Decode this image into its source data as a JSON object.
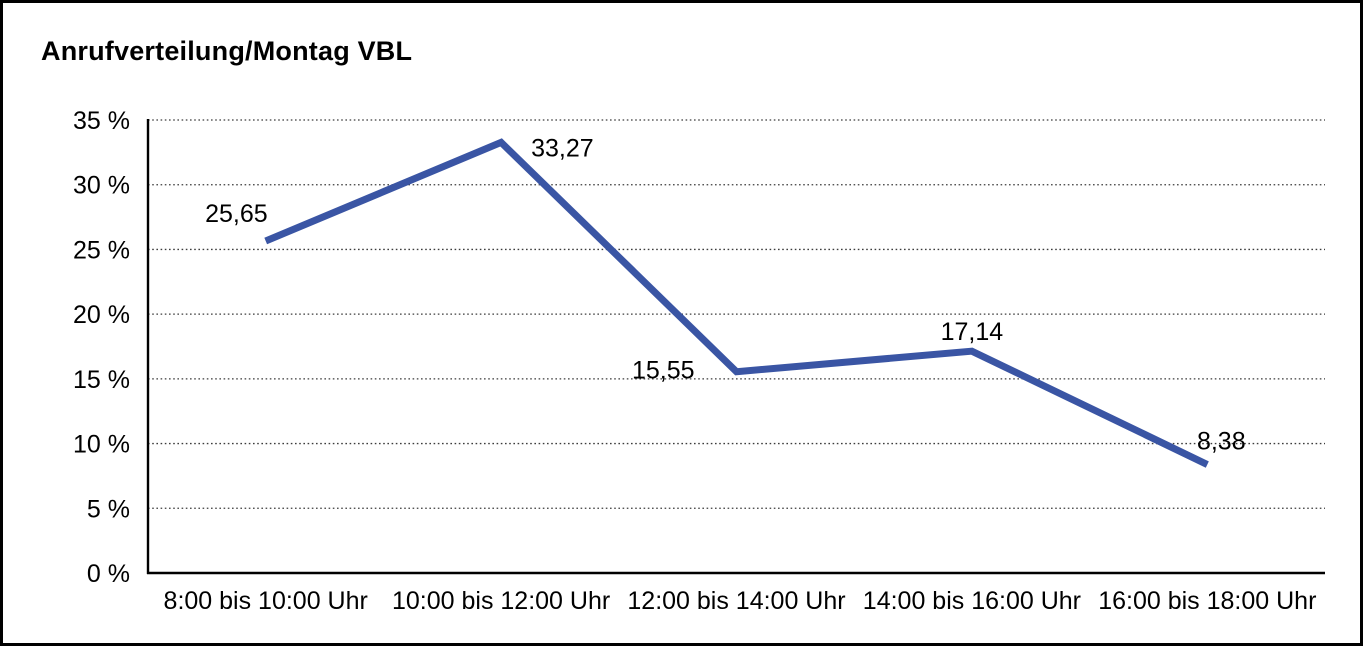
{
  "chart_data": {
    "type": "line",
    "title": "Anrufverteilung/Montag VBL",
    "categories": [
      "8:00 bis 10:00 Uhr",
      "10:00 bis 12:00 Uhr",
      "12:00 bis 14:00 Uhr",
      "14:00 bis 16:00 Uhr",
      "16:00 bis 18:00 Uhr"
    ],
    "values": [
      25.65,
      33.27,
      15.55,
      17.14,
      8.38
    ],
    "value_labels": [
      "25,65",
      "33,27",
      "15,55",
      "17,14",
      "8,38"
    ],
    "value_label_placements": [
      "left-above",
      "right",
      "left",
      "above",
      "above-right"
    ],
    "y_ticks": {
      "values": [
        0,
        5,
        10,
        15,
        20,
        25,
        30,
        35
      ],
      "labels": [
        "0 %",
        "5 %",
        "10 %",
        "15 %",
        "20 %",
        "25 %",
        "30 %",
        "35 %"
      ]
    },
    "ylim": [
      0,
      35
    ],
    "xlabel": "",
    "ylabel": "",
    "legend": "none",
    "grid": "dotted-horizontal",
    "colors": {
      "series_line": "#3A55A4",
      "axis": "#000000",
      "gridline": "#3c3c3c",
      "text": "#000000",
      "background": "#ffffff",
      "frame_border": "#000000"
    }
  }
}
